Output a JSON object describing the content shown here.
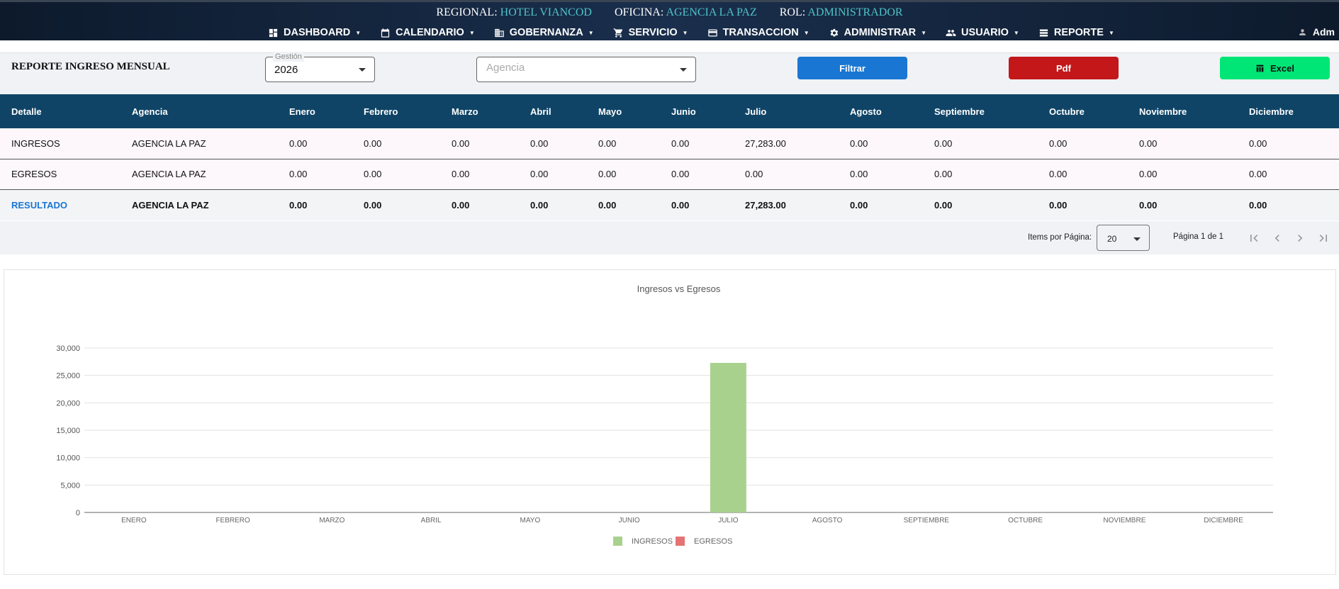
{
  "header": {
    "regional_label": "REGIONAL:",
    "regional_value": "HOTEL VIANCOD",
    "oficina_label": "OFICINA:",
    "oficina_value": "AGENCIA LA PAZ",
    "rol_label": "ROL:",
    "rol_value": "ADMINISTRADOR",
    "nav": [
      {
        "label": "DASHBOARD",
        "icon": "dashboard-icon"
      },
      {
        "label": "CALENDARIO",
        "icon": "calendar-icon"
      },
      {
        "label": "GOBERNANZA",
        "icon": "building-icon"
      },
      {
        "label": "SERVICIO",
        "icon": "cart-icon"
      },
      {
        "label": "TRANSACCION",
        "icon": "credit-card-icon"
      },
      {
        "label": "ADMINISTRAR",
        "icon": "gear-icon"
      },
      {
        "label": "USUARIO",
        "icon": "users-icon"
      },
      {
        "label": "REPORTE",
        "icon": "list-icon"
      }
    ],
    "user": "Adm"
  },
  "filters": {
    "title": "REPORTE INGRESO MENSUAL",
    "gestion_label": "Gestión",
    "gestion_value": "2026",
    "agencia_placeholder": "Agencia",
    "filter_button": "Filtrar",
    "pdf_button": "Pdf",
    "excel_button": "Excel",
    "colors": {
      "filtrar": "#1976d2",
      "pdf": "#c3171a",
      "excel": "#00e676"
    }
  },
  "table": {
    "headers": [
      "Detalle",
      "Agencia",
      "Enero",
      "Febrero",
      "Marzo",
      "Abril",
      "Mayo",
      "Junio",
      "Julio",
      "Agosto",
      "Septiembre",
      "Octubre",
      "Noviembre",
      "Diciembre"
    ],
    "rows": [
      [
        "INGRESOS",
        "AGENCIA LA PAZ",
        "0.00",
        "0.00",
        "0.00",
        "0.00",
        "0.00",
        "0.00",
        "27,283.00",
        "0.00",
        "0.00",
        "0.00",
        "0.00",
        "0.00"
      ],
      [
        "EGRESOS",
        "AGENCIA LA PAZ",
        "0.00",
        "0.00",
        "0.00",
        "0.00",
        "0.00",
        "0.00",
        "0.00",
        "0.00",
        "0.00",
        "0.00",
        "0.00",
        "0.00"
      ],
      [
        "RESULTADO",
        "AGENCIA LA PAZ",
        "0.00",
        "0.00",
        "0.00",
        "0.00",
        "0.00",
        "0.00",
        "27,283.00",
        "0.00",
        "0.00",
        "0.00",
        "0.00",
        "0.00"
      ]
    ]
  },
  "paginator": {
    "items_label": "Items por Página:",
    "items_value": "20",
    "range_label": "Página 1 de 1",
    "buttons": [
      "first-page-icon",
      "prev-page-icon",
      "next-page-icon",
      "last-page-icon"
    ]
  },
  "chart_data": {
    "type": "bar",
    "title": "Ingresos vs Egresos",
    "xlabel": "",
    "ylabel": "",
    "categories": [
      "ENERO",
      "FEBRERO",
      "MARZO",
      "ABRIL",
      "MAYO",
      "JUNIO",
      "JULIO",
      "AGOSTO",
      "SEPTIEMBRE",
      "OCTUBRE",
      "NOVIEMBRE",
      "DICIEMBRE"
    ],
    "series": [
      {
        "name": "INGRESOS",
        "color": "#a9d18e",
        "values": [
          0,
          0,
          0,
          0,
          0,
          0,
          27283,
          0,
          0,
          0,
          0,
          0
        ]
      },
      {
        "name": "EGRESOS",
        "color": "#e57373",
        "values": [
          0,
          0,
          0,
          0,
          0,
          0,
          0,
          0,
          0,
          0,
          0,
          0
        ]
      }
    ],
    "ylim": [
      0,
      30000
    ],
    "yticks": [
      "0",
      "5,000",
      "10,000",
      "15,000",
      "20,000",
      "25,000",
      "30,000"
    ],
    "grid": true,
    "legend": "bottom"
  }
}
